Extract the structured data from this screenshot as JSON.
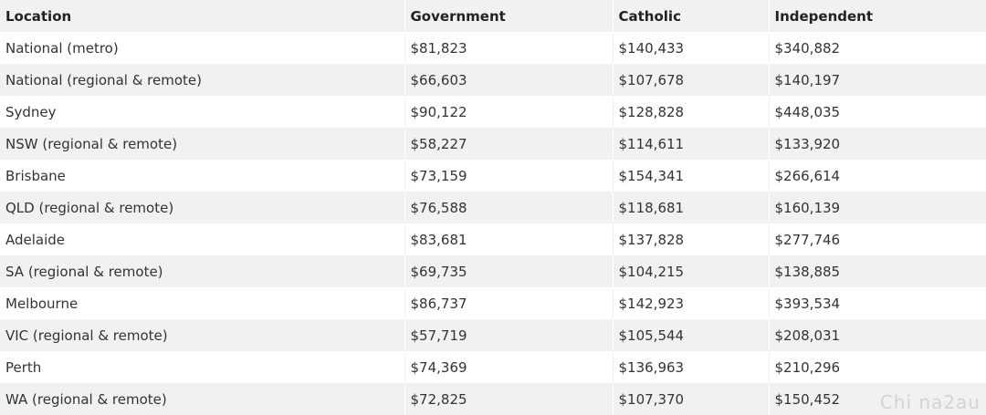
{
  "table": {
    "headers": [
      "Location",
      "Government",
      "Catholic",
      "Independent"
    ],
    "rows": [
      [
        "National (metro)",
        "$81,823",
        "$140,433",
        "$340,882"
      ],
      [
        "National (regional & remote)",
        "$66,603",
        "$107,678",
        "$140,197"
      ],
      [
        "Sydney",
        "$90,122",
        "$128,828",
        "$448,035"
      ],
      [
        "NSW (regional & remote)",
        "$58,227",
        "$114,611",
        "$133,920"
      ],
      [
        "Brisbane",
        "$73,159",
        "$154,341",
        "$266,614"
      ],
      [
        "QLD (regional & remote)",
        "$76,588",
        "$118,681",
        "$160,139"
      ],
      [
        "Adelaide",
        "$83,681",
        "$137,828",
        "$277,746"
      ],
      [
        "SA (regional & remote)",
        "$69,735",
        "$104,215",
        "$138,885"
      ],
      [
        "Melbourne",
        "$86,737",
        "$142,923",
        "$393,534"
      ],
      [
        "VIC (regional & remote)",
        "$57,719",
        "$105,544",
        "$208,031"
      ],
      [
        "Perth",
        "$74,369",
        "$136,963",
        "$210,296"
      ],
      [
        "WA (regional & remote)",
        "$72,825",
        "$107,370",
        "$150,452"
      ]
    ]
  },
  "watermark": "Chi na2au"
}
